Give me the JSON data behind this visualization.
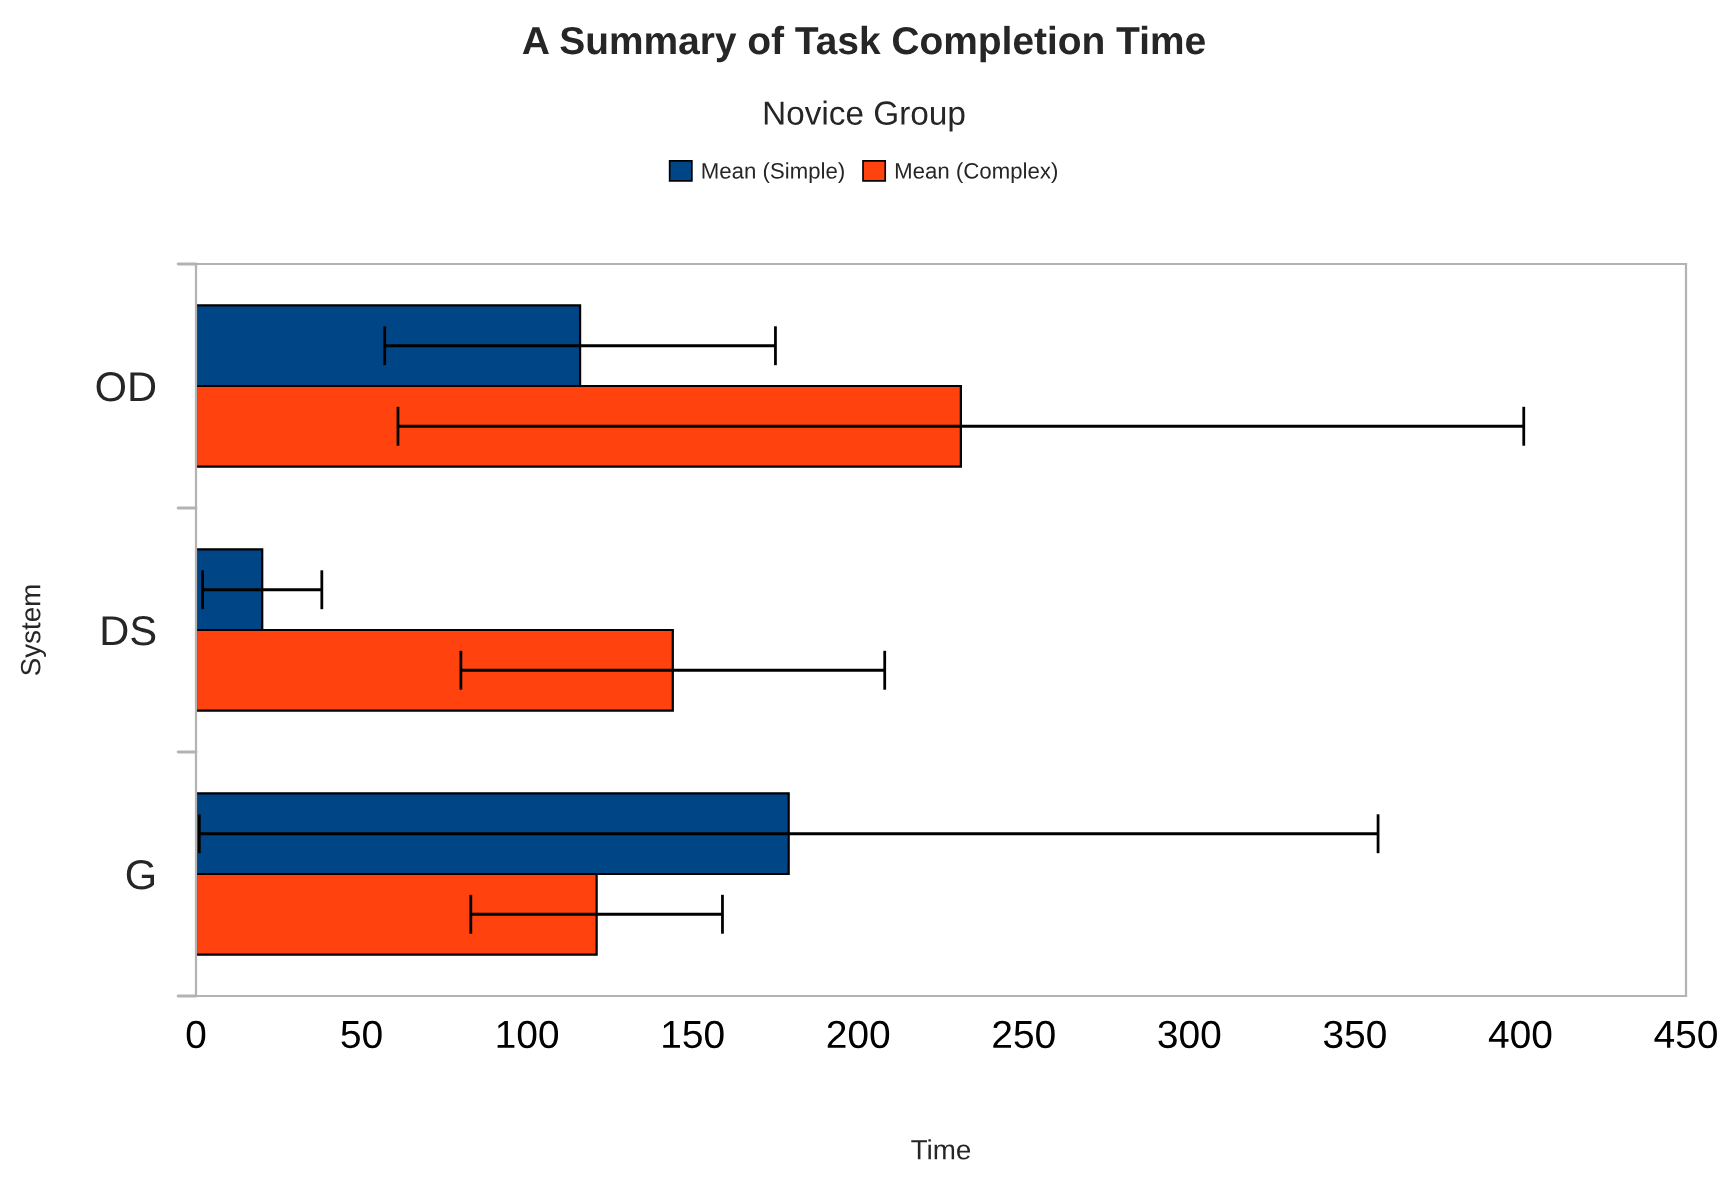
{
  "chart_data": {
    "type": "bar",
    "orientation": "horizontal",
    "title": "A Summary of Task Completion Time",
    "subtitle": "Novice Group",
    "xlabel": "Time",
    "ylabel": "System",
    "categories": [
      "OD",
      "DS",
      "G"
    ],
    "series": [
      {
        "name": "Mean (Simple)",
        "color": "#004586",
        "values": [
          116,
          20,
          179
        ],
        "errors": [
          59,
          18,
          178
        ]
      },
      {
        "name": "Mean (Complex)",
        "color": "#ff420e",
        "values": [
          231,
          144,
          121
        ],
        "errors": [
          170,
          64,
          38
        ]
      }
    ],
    "xlim": [
      0,
      450
    ],
    "xticks": [
      0,
      50,
      100,
      150,
      200,
      250,
      300,
      350,
      400,
      450
    ],
    "grid": false,
    "legend": "top"
  }
}
